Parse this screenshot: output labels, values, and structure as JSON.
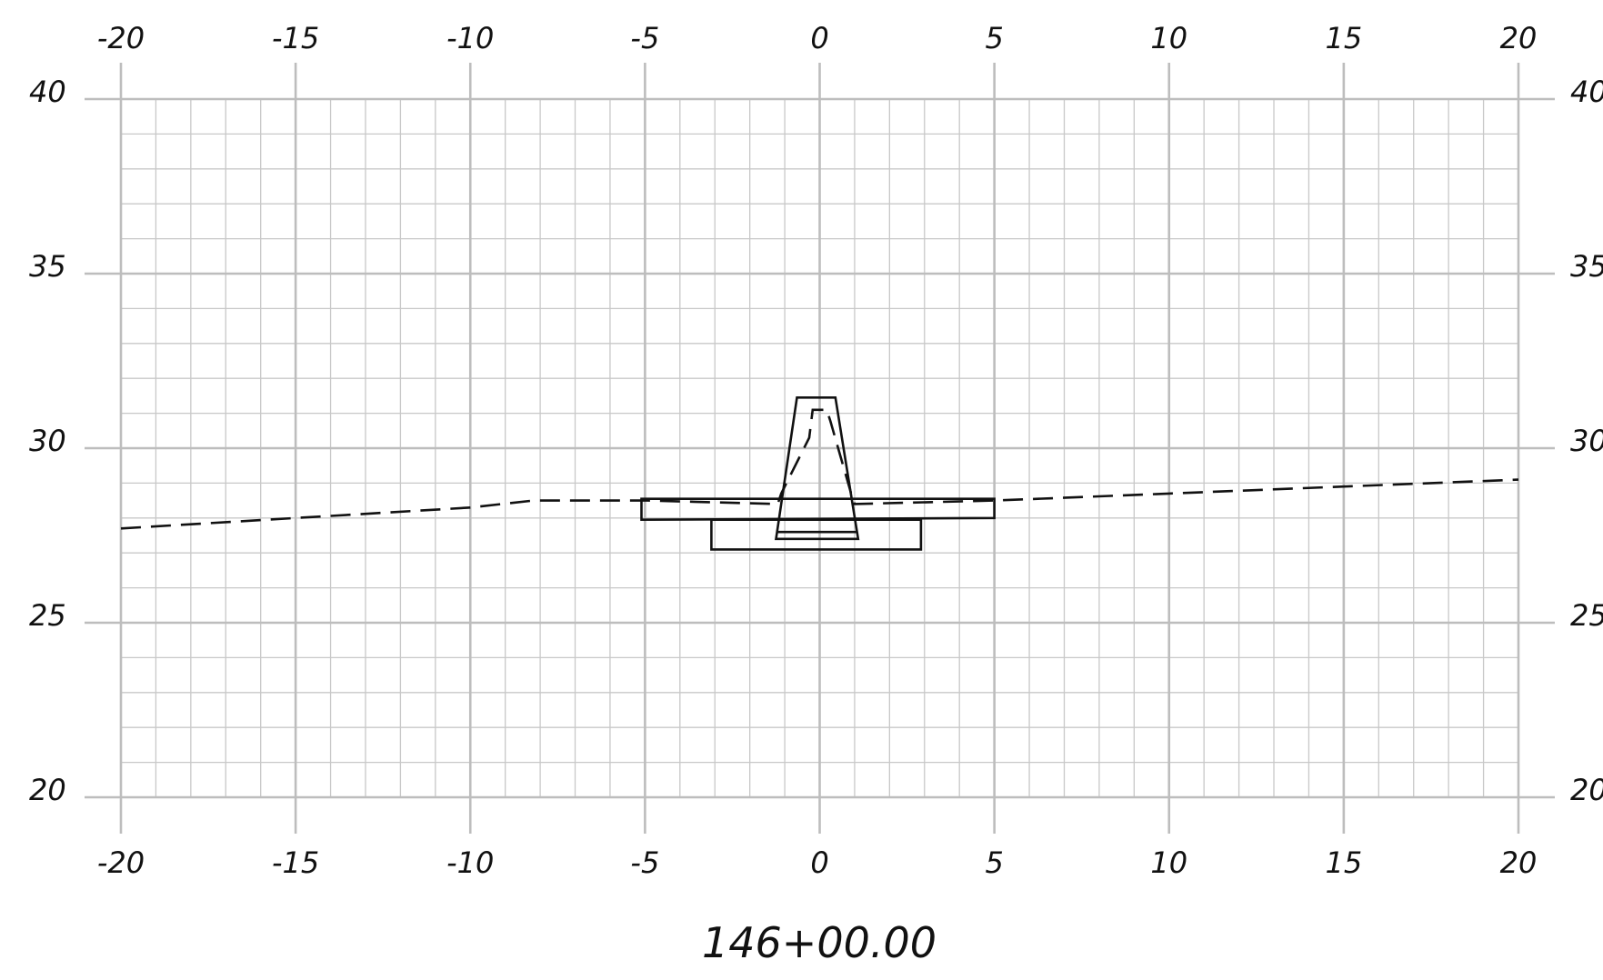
{
  "chart_data": {
    "type": "line",
    "title": "",
    "station_label": "146+00.00",
    "xlim": [
      -20,
      20
    ],
    "ylim": [
      20,
      40
    ],
    "x_major_step": 5,
    "y_major_step": 5,
    "minor_step": 1,
    "grid": true,
    "x_tick_labels": [
      "-20",
      "-15",
      "-10",
      "-5",
      "0",
      "5",
      "10",
      "15",
      "20"
    ],
    "y_tick_labels": [
      "20",
      "25",
      "30",
      "35",
      "40"
    ],
    "series": [
      {
        "style": "dashed",
        "values": [
          [
            -20,
            27.7
          ],
          [
            -15,
            28.0
          ],
          [
            -10,
            28.3
          ],
          [
            -8.2,
            28.5
          ],
          [
            -4.9,
            28.5
          ],
          [
            -1.2,
            28.4
          ],
          [
            -1.1,
            28.7
          ],
          [
            -0.3,
            30.3
          ],
          [
            -0.2,
            31.1
          ],
          [
            0.2,
            31.1
          ],
          [
            0.3,
            30.8
          ],
          [
            0.9,
            28.7
          ],
          [
            1.0,
            28.4
          ],
          [
            5,
            28.5
          ],
          [
            10,
            28.7
          ],
          [
            15,
            28.9
          ],
          [
            20,
            29.1
          ]
        ]
      },
      {
        "style": "solid",
        "closed": true,
        "values": [
          [
            -5.1,
            28.55
          ],
          [
            5.0,
            28.55
          ],
          [
            5.0,
            28.0
          ],
          [
            -5.1,
            27.95
          ]
        ]
      },
      {
        "style": "solid",
        "closed": true,
        "values": [
          [
            -3.1,
            27.95
          ],
          [
            2.9,
            27.95
          ],
          [
            2.9,
            27.1
          ],
          [
            -3.1,
            27.1
          ]
        ]
      },
      {
        "style": "solid",
        "closed": true,
        "values": [
          [
            -0.65,
            31.45
          ],
          [
            0.45,
            31.45
          ],
          [
            1.1,
            27.4
          ],
          [
            -1.25,
            27.4
          ]
        ]
      },
      {
        "style": "solid",
        "values": [
          [
            -1.25,
            27.6
          ],
          [
            1.05,
            27.6
          ]
        ]
      }
    ]
  }
}
